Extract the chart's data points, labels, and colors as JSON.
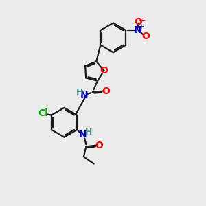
{
  "background_color": "#ebebeb",
  "bond_color": "#1a1a1a",
  "atom_colors": {
    "O": "#ff0000",
    "N": "#0000dd",
    "Cl": "#00aa00",
    "H": "#4a9090",
    "C": "#1a1a1a"
  },
  "figsize": [
    3.0,
    3.0
  ],
  "dpi": 100,
  "lw": 1.6
}
